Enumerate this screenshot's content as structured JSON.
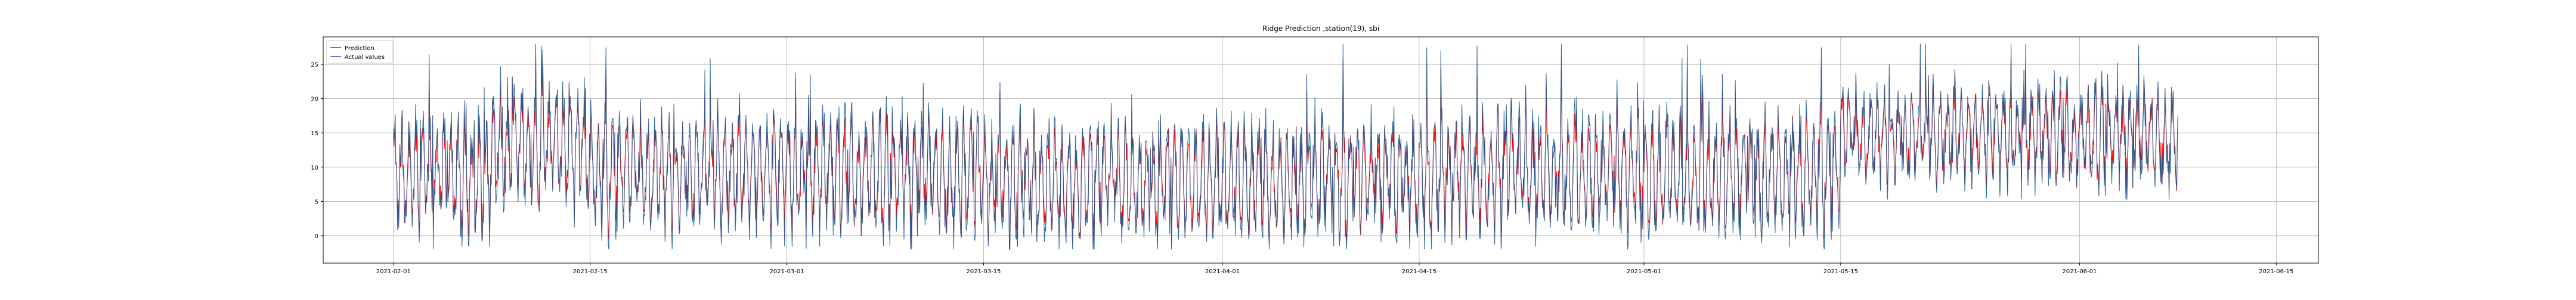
{
  "chart_data": {
    "type": "line",
    "title": "Ridge Prediction ,station(19), sbi",
    "xlabel": "",
    "ylabel": "",
    "x_range": [
      "2021-01-27",
      "2021-06-18"
    ],
    "x_data_range": [
      "2021-02-01",
      "2021-06-08"
    ],
    "ylim": [
      -4,
      29
    ],
    "x_ticks": [
      "2021-02-01",
      "2021-02-15",
      "2021-03-01",
      "2021-03-15",
      "2021-04-01",
      "2021-04-15",
      "2021-05-01",
      "2021-05-15",
      "2021-06-01",
      "2021-06-15"
    ],
    "y_ticks": [
      0,
      5,
      10,
      15,
      20,
      25
    ],
    "grid": true,
    "legend": "top-left",
    "series": [
      {
        "name": "Prediction",
        "color": "#ff0000",
        "baseline_by_segment": [
          {
            "start": "2021-02-01",
            "end": "2021-02-08",
            "low": 2,
            "high": 16
          },
          {
            "start": "2021-02-08",
            "end": "2021-02-15",
            "low": 6,
            "high": 20
          },
          {
            "start": "2021-02-15",
            "end": "2021-03-15",
            "low": 2,
            "high": 16
          },
          {
            "start": "2021-03-15",
            "end": "2021-04-15",
            "low": 1,
            "high": 15
          },
          {
            "start": "2021-04-15",
            "end": "2021-05-15",
            "low": 2,
            "high": 16
          },
          {
            "start": "2021-05-15",
            "end": "2021-06-08",
            "low": 9,
            "high": 20
          }
        ]
      },
      {
        "name": "Actual values",
        "color": "#1f5a96",
        "min": -2,
        "max": 28,
        "sampling": "hourly"
      }
    ]
  }
}
